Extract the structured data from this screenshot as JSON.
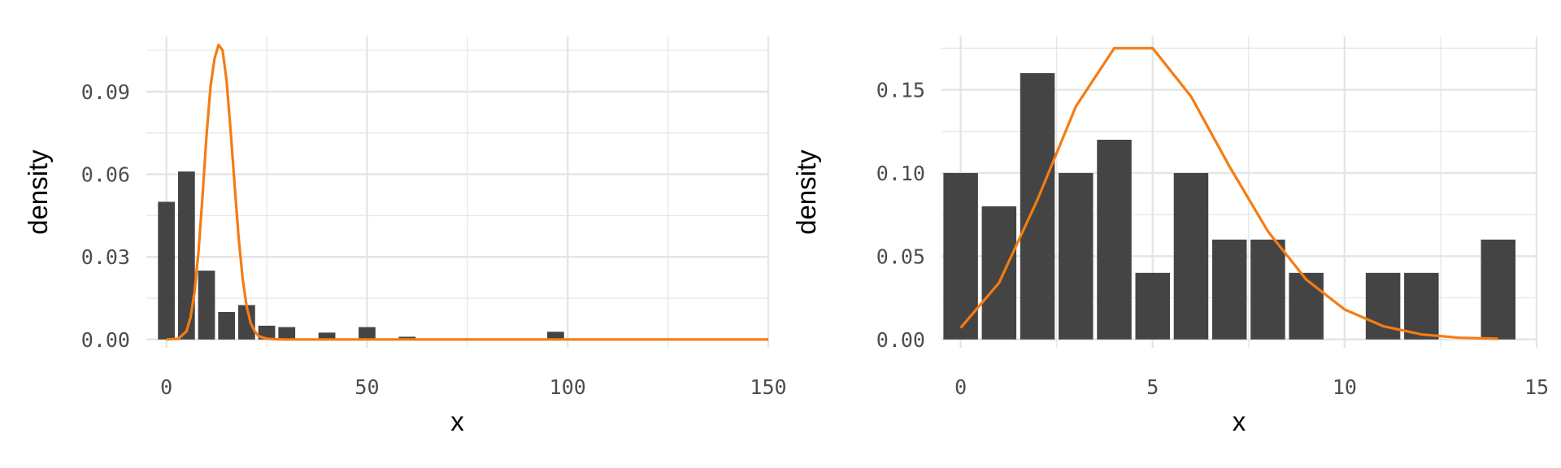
{
  "colors": {
    "bar": "#444444",
    "curve": "#f57c12",
    "grid": "#e5e5e5",
    "tick_text": "#4d4d4d",
    "background": "#ffffff"
  },
  "chart_data": [
    {
      "type": "bar",
      "xlabel": "x",
      "ylabel": "density",
      "xlim": [
        -5,
        150
      ],
      "ylim": [
        -0.003,
        0.11
      ],
      "x_ticks": [
        0,
        50,
        100,
        150
      ],
      "x_tick_labels": [
        "0",
        "50",
        "100",
        "150"
      ],
      "y_ticks": [
        0,
        0.03,
        0.06,
        0.09
      ],
      "y_tick_labels": [
        "0.00",
        "0.03",
        "0.06",
        "0.09"
      ],
      "grid": true,
      "bar_width": 4.2,
      "bars": [
        {
          "x": 0,
          "density": 0.05
        },
        {
          "x": 5,
          "density": 0.061
        },
        {
          "x": 10,
          "density": 0.025
        },
        {
          "x": 15,
          "density": 0.01
        },
        {
          "x": 20,
          "density": 0.0125
        },
        {
          "x": 25,
          "density": 0.005
        },
        {
          "x": 30,
          "density": 0.0045
        },
        {
          "x": 40,
          "density": 0.0025
        },
        {
          "x": 50,
          "density": 0.0045
        },
        {
          "x": 60,
          "density": 0.001
        },
        {
          "x": 97,
          "density": 0.0028
        }
      ],
      "curve": {
        "x": [
          0,
          3,
          5,
          6,
          7,
          8,
          9,
          10,
          11,
          12,
          13,
          14,
          15,
          16,
          17,
          18,
          19,
          20,
          21,
          22,
          23,
          25,
          27,
          30,
          40,
          60,
          100,
          150
        ],
        "y": [
          0,
          0.0003,
          0.003,
          0.008,
          0.017,
          0.032,
          0.052,
          0.074,
          0.092,
          0.102,
          0.107,
          0.105,
          0.094,
          0.076,
          0.056,
          0.037,
          0.022,
          0.012,
          0.006,
          0.003,
          0.0012,
          0.0003,
          0.0001,
          0,
          0,
          0,
          0,
          0
        ]
      }
    },
    {
      "type": "bar",
      "xlabel": "x",
      "ylabel": "density",
      "xlim": [
        -0.5,
        15
      ],
      "ylim": [
        -0.005,
        0.182
      ],
      "x_ticks": [
        0,
        5,
        10,
        15
      ],
      "x_tick_labels": [
        "0",
        "5",
        "10",
        "15"
      ],
      "y_ticks": [
        0,
        0.05,
        0.1,
        0.15
      ],
      "y_tick_labels": [
        "0.00",
        "0.05",
        "0.10",
        "0.15"
      ],
      "grid": true,
      "bar_width": 0.9,
      "bars": [
        {
          "x": 0,
          "density": 0.1
        },
        {
          "x": 1,
          "density": 0.08
        },
        {
          "x": 2,
          "density": 0.16
        },
        {
          "x": 3,
          "density": 0.1
        },
        {
          "x": 4,
          "density": 0.12
        },
        {
          "x": 5,
          "density": 0.04
        },
        {
          "x": 6,
          "density": 0.1
        },
        {
          "x": 7,
          "density": 0.06
        },
        {
          "x": 8,
          "density": 0.06
        },
        {
          "x": 9,
          "density": 0.04
        },
        {
          "x": 11,
          "density": 0.04
        },
        {
          "x": 12,
          "density": 0.04
        },
        {
          "x": 14,
          "density": 0.06
        }
      ],
      "curve": {
        "x": [
          0,
          1,
          2,
          3,
          4,
          5,
          6,
          7,
          8,
          9,
          10,
          11,
          12,
          13,
          14
        ],
        "y": [
          0.007,
          0.034,
          0.084,
          0.14,
          0.175,
          0.175,
          0.146,
          0.104,
          0.065,
          0.036,
          0.018,
          0.008,
          0.003,
          0.001,
          0.0004
        ]
      }
    }
  ]
}
